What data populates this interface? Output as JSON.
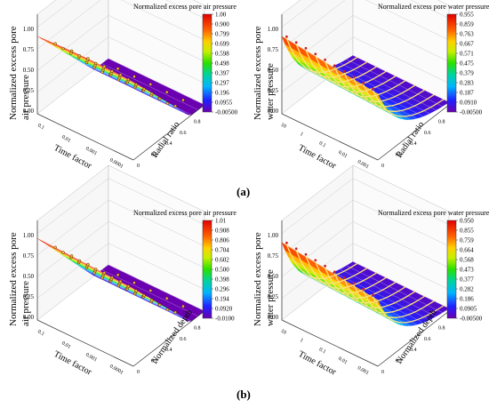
{
  "figure": {
    "label_a": "(a)",
    "label_b": "(b)"
  },
  "chart_data": [
    {
      "type": "surface3d",
      "title": "Normalized excess pore air pressure",
      "zlabel": "Normalized excess pore air pressure",
      "xlabel": "Time factor",
      "ylabel": "Radial ratio",
      "x_ticks": [
        "0.1",
        "0.01",
        "0.001",
        "0.0001"
      ],
      "y_ticks": [
        "0",
        "0.2",
        "0.4",
        "0.6",
        "0.8",
        "1"
      ],
      "z_ticks": [
        "0.00",
        "0.25",
        "0.50",
        "0.75",
        "1.00"
      ],
      "colorbar": [
        "1.00",
        "0.900",
        "0.799",
        "0.699",
        "0.598",
        "0.498",
        "0.397",
        "0.297",
        "0.196",
        "0.0955",
        "-0.00500"
      ],
      "zlim": [
        0,
        1
      ],
      "points": "circle",
      "points_count": 46
    },
    {
      "type": "surface3d",
      "title": "Normalized excess pore water pressure",
      "zlabel": "Normalized excess pore water pressure",
      "xlabel": "Time factor",
      "ylabel": "Radial ratio",
      "x_ticks": [
        "10",
        "1",
        "0.1",
        "0.01",
        "0.001"
      ],
      "y_ticks": [
        "0",
        "0.2",
        "0.4",
        "0.6",
        "0.8",
        "1"
      ],
      "z_ticks": [
        "0.00",
        "0.25",
        "0.50",
        "0.75",
        "1.00"
      ],
      "colorbar": [
        "0.955",
        "0.859",
        "0.763",
        "0.667",
        "0.571",
        "0.475",
        "0.379",
        "0.283",
        "0.187",
        "0.0910",
        "-0.00500"
      ],
      "zlim": [
        0,
        1
      ],
      "points": "line",
      "line_count": 10
    },
    {
      "type": "surface3d",
      "title": "Normalized excess pore air pressure",
      "zlabel": "Normalized excess pore air pressure",
      "xlabel": "Time factor",
      "ylabel": "Normalized depth",
      "x_ticks": [
        "0.1",
        "0.01",
        "0.001",
        "0.0001"
      ],
      "y_ticks": [
        "0",
        "0.2",
        "0.4",
        "0.6",
        "0.8",
        "1"
      ],
      "z_ticks": [
        "0.00",
        "0.25",
        "0.50",
        "0.75",
        "1.00"
      ],
      "colorbar": [
        "1.01",
        "0.908",
        "0.806",
        "0.704",
        "0.602",
        "0.500",
        "0.398",
        "0.296",
        "0.194",
        "0.0920",
        "-0.0100"
      ],
      "zlim": [
        0,
        1
      ],
      "points": "circle",
      "points_count": 40
    },
    {
      "type": "surface3d",
      "title": "Normalized excess pore water pressure",
      "zlabel": "Normalized excess pore water pressure",
      "xlabel": "Time factor",
      "ylabel": "Normalized depth",
      "x_ticks": [
        "10",
        "1",
        "0.1",
        "0.01",
        "0.001"
      ],
      "y_ticks": [
        "0",
        "0.2",
        "0.4",
        "0.6",
        "0.8",
        "1"
      ],
      "z_ticks": [
        "0.00",
        "0.25",
        "0.50",
        "0.75",
        "1.00"
      ],
      "colorbar": [
        "0.950",
        "0.855",
        "0.759",
        "0.664",
        "0.568",
        "0.473",
        "0.377",
        "0.282",
        "0.186",
        "0.0905",
        "-0.00500"
      ],
      "zlim": [
        0,
        1
      ],
      "points": "line",
      "line_count": 10
    }
  ]
}
